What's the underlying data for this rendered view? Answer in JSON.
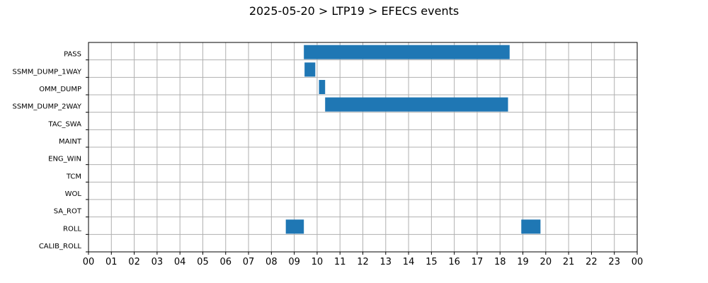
{
  "chart_data": {
    "type": "bar",
    "orientation": "horizontal-timeline",
    "title": "2025-05-20 > LTP19 > EFECS events",
    "xlabel": "",
    "ylabel": "",
    "xlim": [
      0,
      24
    ],
    "grid": true,
    "bar_color": "#1f77b4",
    "categories": [
      "PASS",
      "SSMM_DUMP_1WAY",
      "OMM_DUMP",
      "SSMM_DUMP_2WAY",
      "TAC_SWA",
      "MAINT",
      "ENG_WIN",
      "TCM",
      "WOL",
      "SA_ROT",
      "ROLL",
      "CALIB_ROLL"
    ],
    "x_tick_labels": [
      "00",
      "01",
      "02",
      "03",
      "04",
      "05",
      "06",
      "07",
      "08",
      "09",
      "10",
      "11",
      "12",
      "13",
      "14",
      "15",
      "16",
      "17",
      "18",
      "19",
      "20",
      "21",
      "22",
      "23",
      "00"
    ],
    "events": [
      {
        "category": "PASS",
        "start": 9.42,
        "end": 18.42
      },
      {
        "category": "SSMM_DUMP_1WAY",
        "start": 9.45,
        "end": 9.92
      },
      {
        "category": "OMM_DUMP",
        "start": 10.08,
        "end": 10.35
      },
      {
        "category": "SSMM_DUMP_2WAY",
        "start": 10.35,
        "end": 18.35
      },
      {
        "category": "ROLL",
        "start": 8.63,
        "end": 9.42
      },
      {
        "category": "ROLL",
        "start": 18.93,
        "end": 19.77
      }
    ]
  }
}
